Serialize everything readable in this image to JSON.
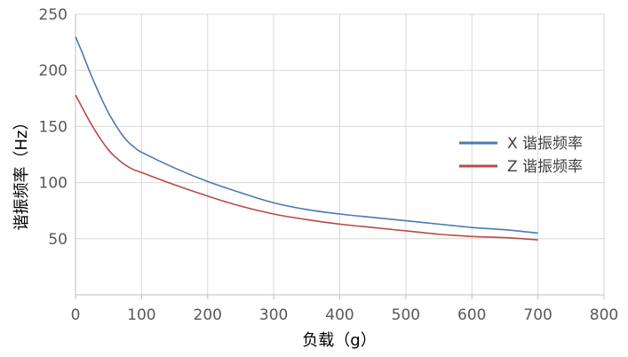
{
  "chart_data": {
    "type": "line",
    "xlabel": "负载（g）",
    "ylabel": "谐振频率（Hz）",
    "xlim": [
      0,
      800
    ],
    "ylim": [
      0,
      250
    ],
    "xticks": [
      0,
      100,
      200,
      300,
      400,
      500,
      600,
      700,
      800
    ],
    "yticks": [
      50,
      100,
      150,
      200,
      250
    ],
    "grid": true,
    "legend_position": "right",
    "series": [
      {
        "name": "X 谐振频率",
        "color": "#4a7ab5",
        "x": [
          0,
          10,
          20,
          30,
          40,
          50,
          60,
          70,
          80,
          90,
          100,
          150,
          200,
          250,
          300,
          350,
          400,
          450,
          500,
          550,
          600,
          650,
          700
        ],
        "y": [
          230,
          216,
          201,
          187,
          174,
          162,
          152,
          143,
          136,
          131,
          127,
          113,
          101,
          91,
          82,
          76,
          72,
          69,
          66,
          63,
          60,
          58,
          55
        ]
      },
      {
        "name": "Z 谐振频率",
        "color": "#b94a47",
        "x": [
          0,
          10,
          20,
          30,
          40,
          50,
          60,
          70,
          80,
          90,
          100,
          150,
          200,
          250,
          300,
          350,
          400,
          450,
          500,
          550,
          600,
          650,
          700
        ],
        "y": [
          178,
          167,
          156,
          146,
          137,
          129,
          123,
          118,
          114,
          111,
          109,
          98,
          88,
          79,
          72,
          67,
          63,
          60,
          57,
          54,
          52,
          51,
          49
        ]
      }
    ]
  }
}
